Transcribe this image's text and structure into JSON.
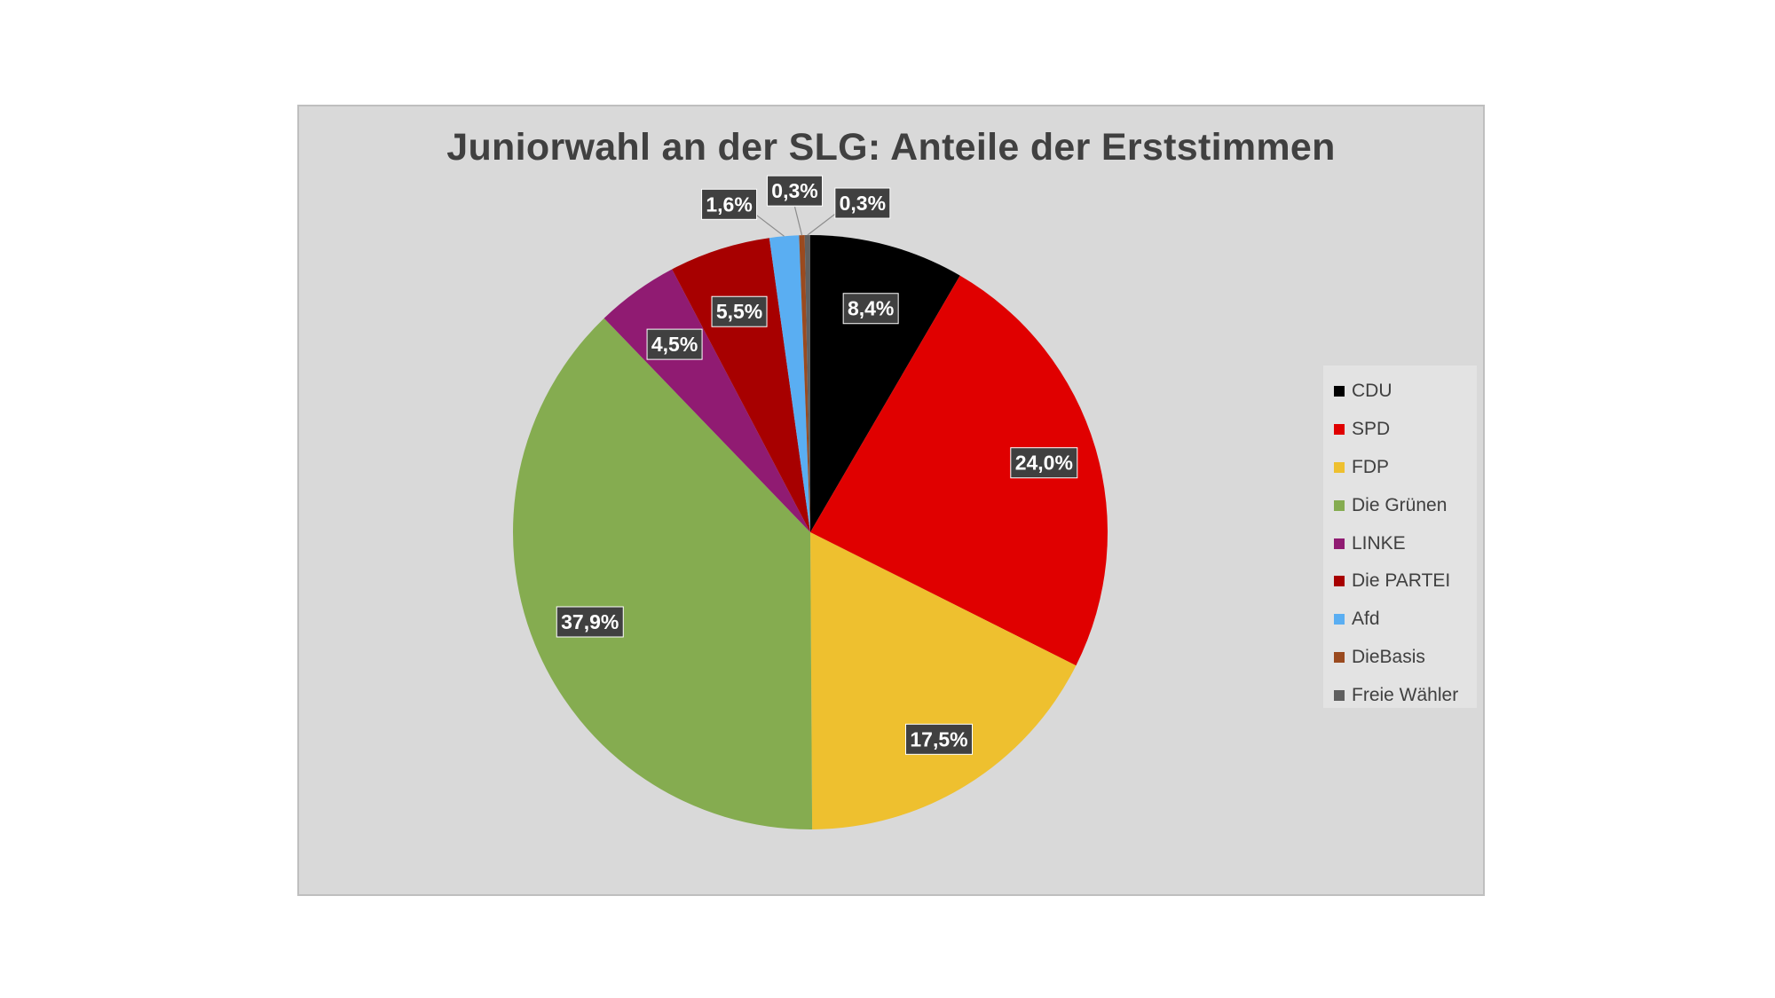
{
  "chart_data": {
    "type": "pie",
    "title": "Juniorwahl an der SLG: Anteile der Erststimmen",
    "legend_position": "right",
    "slices": [
      {
        "label": "CDU",
        "value": 8.4,
        "display": "8,4%",
        "color": "#000000"
      },
      {
        "label": "SPD",
        "value": 24.0,
        "display": "24,0%",
        "color": "#e00000"
      },
      {
        "label": "FDP",
        "value": 17.5,
        "display": "17,5%",
        "color": "#eec02f"
      },
      {
        "label": "Die Grünen",
        "value": 37.9,
        "display": "37,9%",
        "color": "#85ac50"
      },
      {
        "label": "LINKE",
        "value": 4.5,
        "display": "4,5%",
        "color": "#901b72"
      },
      {
        "label": "Die PARTEI",
        "value": 5.5,
        "display": "5,5%",
        "color": "#a70000"
      },
      {
        "label": "Afd",
        "value": 1.6,
        "display": "1,6%",
        "color": "#5aaef2"
      },
      {
        "label": "DieBasis",
        "value": 0.3,
        "display": "0,3%",
        "color": "#9a4a1f"
      },
      {
        "label": "Freie Wähler",
        "value": 0.3,
        "display": "0,3%",
        "color": "#5f5f5f"
      }
    ]
  }
}
